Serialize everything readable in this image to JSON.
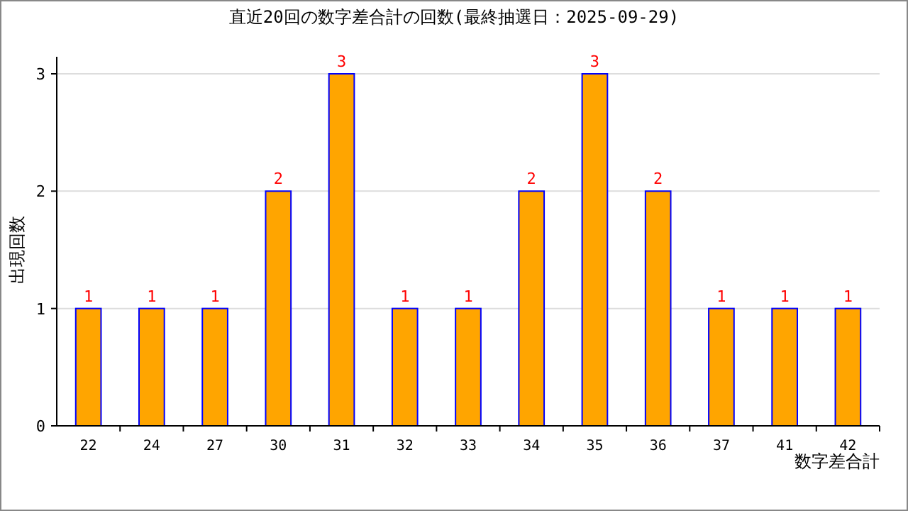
{
  "chart_data": {
    "type": "bar",
    "title": "直近20回の数字差合計の回数(最終抽選日：2025-09-29)",
    "xlabel": "数字差合計",
    "ylabel": "出現回数",
    "categories": [
      "22",
      "24",
      "27",
      "30",
      "31",
      "32",
      "33",
      "34",
      "35",
      "36",
      "37",
      "41",
      "42"
    ],
    "values": [
      1,
      1,
      1,
      2,
      3,
      1,
      1,
      2,
      3,
      2,
      1,
      1,
      1
    ],
    "color": "#ffa500",
    "ylim": [
      0,
      3
    ],
    "yticks": [
      0,
      1,
      2,
      3
    ],
    "grid": "y",
    "data_labels": true
  }
}
